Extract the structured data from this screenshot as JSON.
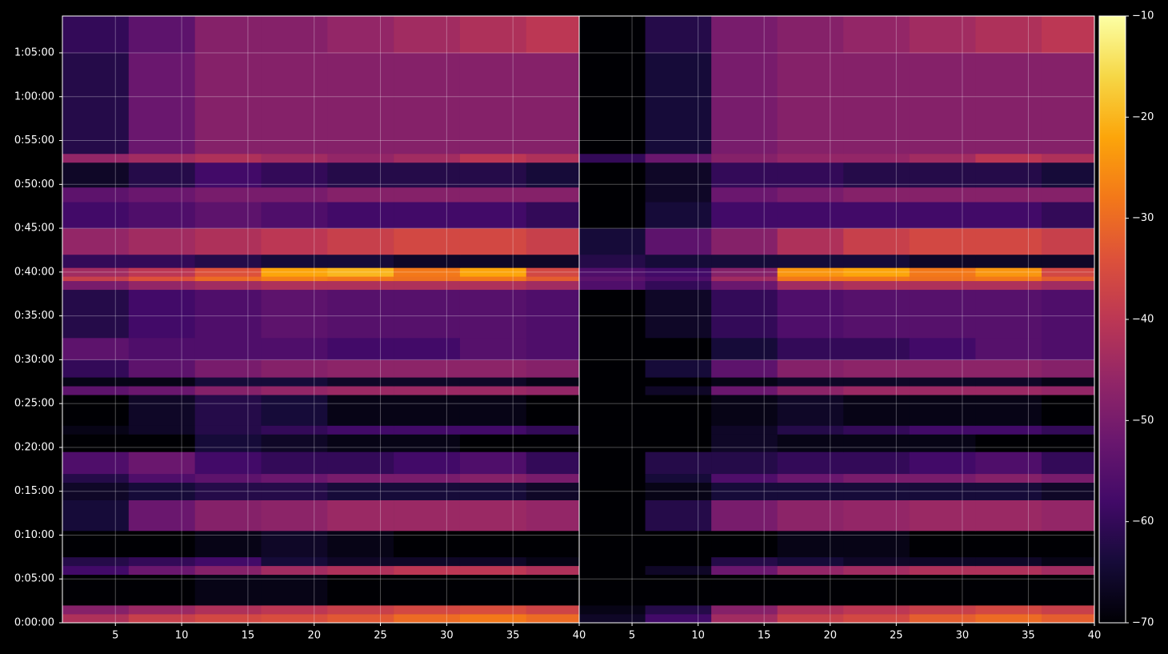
{
  "chart_data": [
    {
      "type": "heatmap",
      "xbins": [
        1,
        6,
        11,
        16,
        21,
        26,
        31,
        36,
        40
      ],
      "ybins": [
        0,
        60,
        120,
        330,
        390,
        450,
        630,
        840,
        960,
        1020,
        1170,
        1290,
        1350,
        1560,
        1620,
        1680,
        1800,
        1950,
        2280,
        2340,
        2370,
        2430,
        2520,
        2700,
        2880,
        2980,
        3150,
        3210,
        3900,
        4152
      ],
      "xlim": [
        1,
        40
      ],
      "ylim": [
        0,
        4152
      ],
      "xticks": [
        5,
        10,
        15,
        20,
        25,
        30,
        35,
        40
      ],
      "yticks": [
        {
          "value": 0,
          "label": "0:00:00"
        },
        {
          "value": 300,
          "label": "0:05:00"
        },
        {
          "value": 600,
          "label": "0:10:00"
        },
        {
          "value": 900,
          "label": "0:15:00"
        },
        {
          "value": 1200,
          "label": "0:20:00"
        },
        {
          "value": 1500,
          "label": "0:25:00"
        },
        {
          "value": 1800,
          "label": "0:30:00"
        },
        {
          "value": 2100,
          "label": "0:35:00"
        },
        {
          "value": 2400,
          "label": "0:40:00"
        },
        {
          "value": 2700,
          "label": "0:45:00"
        },
        {
          "value": 3000,
          "label": "0:50:00"
        },
        {
          "value": 3300,
          "label": "0:55:00"
        },
        {
          "value": 3600,
          "label": "1:00:00"
        },
        {
          "value": 3900,
          "label": "1:05:00"
        }
      ],
      "grid": true,
      "values": [
        [
          -42,
          -38,
          -36,
          -35,
          -33,
          -30,
          -28,
          -30
        ],
        [
          -48,
          -45,
          -42,
          -40,
          -38,
          -36,
          -35,
          -37
        ],
        [
          -70,
          -70,
          -68,
          -68,
          -70,
          -70,
          -70,
          -70
        ],
        [
          -58,
          -52,
          -48,
          -44,
          -42,
          -40,
          -40,
          -42
        ],
        [
          -62,
          -60,
          -58,
          -64,
          -66,
          -66,
          -66,
          -68
        ],
        [
          -70,
          -70,
          -68,
          -66,
          -68,
          -70,
          -70,
          -70
        ],
        [
          -64,
          -52,
          -48,
          -47,
          -45,
          -45,
          -45,
          -46
        ],
        [
          -66,
          -64,
          -62,
          -62,
          -64,
          -64,
          -64,
          -66
        ],
        [
          -62,
          -56,
          -54,
          -52,
          -50,
          -50,
          -48,
          -50
        ],
        [
          -56,
          -52,
          -58,
          -60,
          -60,
          -58,
          -56,
          -60
        ],
        [
          -70,
          -70,
          -64,
          -66,
          -68,
          -68,
          -70,
          -70
        ],
        [
          -68,
          -66,
          -62,
          -60,
          -58,
          -58,
          -58,
          -60
        ],
        [
          -70,
          -66,
          -62,
          -64,
          -68,
          -68,
          -68,
          -70
        ],
        [
          -54,
          -52,
          -48,
          -46,
          -45,
          -45,
          -45,
          -46
        ],
        [
          -68,
          -68,
          -64,
          -64,
          -66,
          -66,
          -66,
          -68
        ],
        [
          -60,
          -54,
          -50,
          -48,
          -47,
          -47,
          -47,
          -48
        ],
        [
          -54,
          -56,
          -56,
          -56,
          -58,
          -58,
          -55,
          -56
        ],
        [
          -62,
          -58,
          -56,
          -54,
          -55,
          -55,
          -55,
          -56
        ],
        [
          -50,
          -46,
          -44,
          -42,
          -42,
          -42,
          -42,
          -44
        ],
        [
          -38,
          -34,
          -30,
          -27,
          -28,
          -29,
          -28,
          -32
        ],
        [
          -44,
          -40,
          -34,
          -22,
          -20,
          -28,
          -22,
          -36
        ],
        [
          -60,
          -60,
          -62,
          -64,
          -64,
          -66,
          -66,
          -66
        ],
        [
          -46,
          -44,
          -42,
          -40,
          -38,
          -36,
          -36,
          -38
        ],
        [
          -58,
          -56,
          -54,
          -56,
          -58,
          -58,
          -58,
          -60
        ],
        [
          -54,
          -52,
          -50,
          -50,
          -48,
          -48,
          -48,
          -48
        ],
        [
          -66,
          -62,
          -58,
          -60,
          -62,
          -62,
          -62,
          -64
        ],
        [
          -46,
          -44,
          -42,
          -44,
          -46,
          -44,
          -40,
          -42
        ],
        [
          -62,
          -52,
          -48,
          -48,
          -48,
          -48,
          -48,
          -48
        ],
        [
          -60,
          -54,
          -48,
          -48,
          -46,
          -44,
          -42,
          -40
        ]
      ]
    },
    {
      "type": "heatmap",
      "xbins": [
        1,
        6,
        11,
        16,
        21,
        26,
        31,
        36,
        40
      ],
      "ybins": [
        0,
        60,
        120,
        330,
        390,
        450,
        630,
        840,
        960,
        1020,
        1170,
        1290,
        1350,
        1560,
        1620,
        1680,
        1800,
        1950,
        2280,
        2340,
        2370,
        2430,
        2520,
        2700,
        2880,
        2980,
        3150,
        3210,
        3900,
        4152
      ],
      "xlim": [
        1,
        40
      ],
      "ylim": [
        0,
        4152
      ],
      "xticks": [
        5,
        10,
        15,
        20,
        25,
        30,
        35,
        40
      ],
      "grid": true,
      "values": [
        [
          -66,
          -58,
          -44,
          -38,
          -36,
          -32,
          -30,
          -32
        ],
        [
          -68,
          -62,
          -48,
          -42,
          -40,
          -38,
          -36,
          -38
        ],
        [
          -70,
          -70,
          -70,
          -70,
          -70,
          -70,
          -70,
          -70
        ],
        [
          -70,
          -66,
          -52,
          -46,
          -44,
          -42,
          -42,
          -44
        ],
        [
          -70,
          -70,
          -62,
          -64,
          -66,
          -66,
          -66,
          -68
        ],
        [
          -70,
          -70,
          -70,
          -68,
          -68,
          -70,
          -70,
          -70
        ],
        [
          -70,
          -62,
          -50,
          -47,
          -46,
          -45,
          -45,
          -46
        ],
        [
          -70,
          -68,
          -64,
          -64,
          -64,
          -64,
          -64,
          -66
        ],
        [
          -70,
          -64,
          -56,
          -52,
          -50,
          -50,
          -48,
          -50
        ],
        [
          -70,
          -62,
          -62,
          -60,
          -60,
          -58,
          -56,
          -60
        ],
        [
          -70,
          -70,
          -66,
          -68,
          -68,
          -68,
          -70,
          -70
        ],
        [
          -70,
          -70,
          -66,
          -62,
          -60,
          -58,
          -58,
          -60
        ],
        [
          -70,
          -70,
          -68,
          -66,
          -68,
          -68,
          -68,
          -70
        ],
        [
          -70,
          -66,
          -52,
          -47,
          -45,
          -45,
          -45,
          -46
        ],
        [
          -70,
          -70,
          -68,
          -66,
          -66,
          -66,
          -66,
          -68
        ],
        [
          -70,
          -64,
          -54,
          -48,
          -47,
          -47,
          -47,
          -48
        ],
        [
          -70,
          -70,
          -64,
          -60,
          -60,
          -58,
          -55,
          -56
        ],
        [
          -70,
          -66,
          -60,
          -56,
          -55,
          -55,
          -55,
          -56
        ],
        [
          -56,
          -60,
          -52,
          -44,
          -42,
          -42,
          -42,
          -44
        ],
        [
          -54,
          -56,
          -44,
          -28,
          -28,
          -29,
          -28,
          -32
        ],
        [
          -56,
          -58,
          -48,
          -24,
          -22,
          -28,
          -24,
          -36
        ],
        [
          -62,
          -64,
          -64,
          -64,
          -64,
          -66,
          -66,
          -66
        ],
        [
          -64,
          -54,
          -48,
          -42,
          -38,
          -36,
          -36,
          -38
        ],
        [
          -70,
          -64,
          -58,
          -58,
          -58,
          -58,
          -58,
          -60
        ],
        [
          -70,
          -66,
          -52,
          -50,
          -48,
          -48,
          -48,
          -48
        ],
        [
          -70,
          -66,
          -60,
          -60,
          -62,
          -62,
          -62,
          -64
        ],
        [
          -60,
          -52,
          -48,
          -46,
          -46,
          -44,
          -40,
          -42
        ],
        [
          -70,
          -64,
          -50,
          -48,
          -48,
          -48,
          -48,
          -48
        ],
        [
          -70,
          -62,
          -50,
          -48,
          -46,
          -44,
          -42,
          -40
        ]
      ]
    }
  ],
  "colorbar": {
    "colormap": "inferno",
    "lim": [
      -70,
      -10
    ],
    "ticks": [
      {
        "value": -70,
        "label": "−70"
      },
      {
        "value": -60,
        "label": "−60"
      },
      {
        "value": -50,
        "label": "−50"
      },
      {
        "value": -40,
        "label": "−40"
      },
      {
        "value": -30,
        "label": "−30"
      },
      {
        "value": -20,
        "label": "−20"
      },
      {
        "value": -10,
        "label": "−10"
      }
    ]
  }
}
